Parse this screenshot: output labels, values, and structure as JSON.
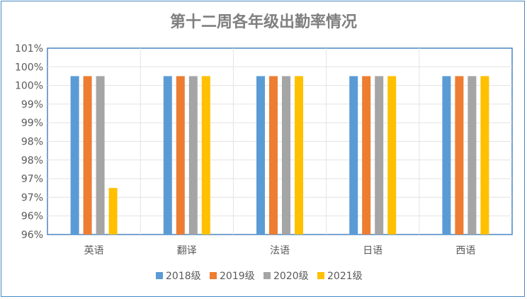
{
  "chart_data": {
    "type": "bar",
    "title": "第十二周各年级出勤率情况",
    "categories": [
      "英语",
      "翻译",
      "法语",
      "日语",
      "西语"
    ],
    "y_tick_labels": [
      "96%",
      "96%",
      "97%",
      "97%",
      "98%",
      "98%",
      "99%",
      "99%",
      "100%",
      "100%",
      "101%"
    ],
    "ylim": [
      95.75,
      100.75
    ],
    "grid": true,
    "legend_position": "bottom",
    "series": [
      {
        "name": "2018级",
        "color": "#5b9bd5",
        "values": [
          100,
          100,
          100,
          100,
          100
        ]
      },
      {
        "name": "2019级",
        "color": "#ed7d31",
        "values": [
          100,
          100,
          100,
          100,
          100
        ]
      },
      {
        "name": "2020级",
        "color": "#a5a5a5",
        "values": [
          100,
          100,
          100,
          100,
          100
        ]
      },
      {
        "name": "2021级",
        "color": "#ffc000",
        "values": [
          97,
          100,
          100,
          100,
          100
        ]
      }
    ]
  }
}
